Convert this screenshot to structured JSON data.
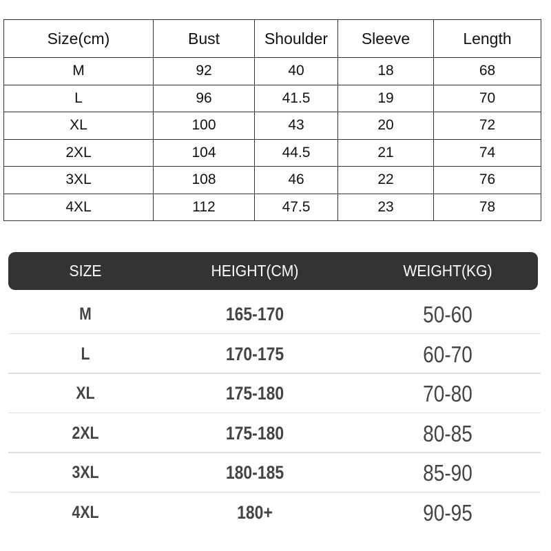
{
  "measurement_table": {
    "headers": [
      "Size(cm)",
      "Bust",
      "Shoulder",
      "Sleeve",
      "Length"
    ],
    "rows": [
      [
        "M",
        "92",
        "40",
        "18",
        "68"
      ],
      [
        "L",
        "96",
        "41.5",
        "19",
        "70"
      ],
      [
        "XL",
        "100",
        "43",
        "20",
        "72"
      ],
      [
        "2XL",
        "104",
        "44.5",
        "21",
        "74"
      ],
      [
        "3XL",
        "108",
        "46",
        "22",
        "76"
      ],
      [
        "4XL",
        "112",
        "47.5",
        "23",
        "78"
      ]
    ]
  },
  "fit_table": {
    "headers": [
      "SIZE",
      "HEIGHT(CM)",
      "WEIGHT(KG)"
    ],
    "header_color": "#333333",
    "rows": [
      [
        "M",
        "165-170",
        "50-60"
      ],
      [
        "L",
        "170-175",
        "60-70"
      ],
      [
        "XL",
        "175-180",
        "70-80"
      ],
      [
        "2XL",
        "175-180",
        "80-85"
      ],
      [
        "3XL",
        "180-185",
        "85-90"
      ],
      [
        "4XL",
        "180+",
        "90-95"
      ]
    ]
  }
}
